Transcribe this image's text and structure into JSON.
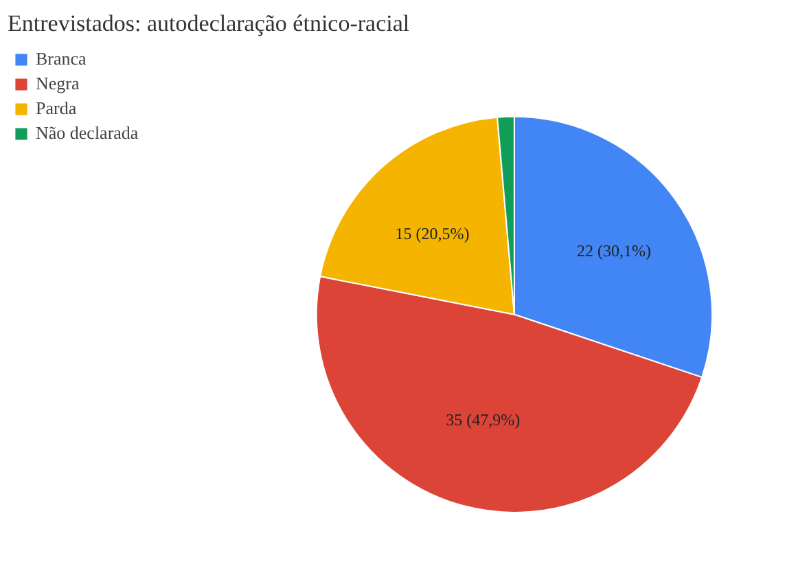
{
  "chart_data": {
    "type": "pie",
    "title": "Entrevistados: autodeclaração étnico-racial",
    "categories": [
      "Branca",
      "Negra",
      "Parda",
      "Não declarada"
    ],
    "values": [
      22,
      35,
      15,
      1
    ],
    "colors": [
      "#4285f4",
      "#db4437",
      "#f4b400",
      "#0f9d58"
    ],
    "value_labels": [
      "22 (30,1%)",
      "35 (47,9%)",
      "15 (20,5%)",
      null
    ],
    "legend": "top left"
  }
}
